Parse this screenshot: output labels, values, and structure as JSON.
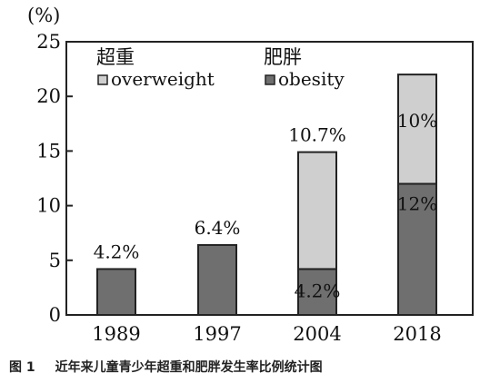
{
  "caption": {
    "figure": "图 1",
    "text": "近年来儿童青少年超重和肥胖发生率比例统计图"
  },
  "chart_data": {
    "type": "bar",
    "stacked": true,
    "y_unit_label": "(%)",
    "ylim": [
      0,
      25
    ],
    "yticks": [
      0,
      5,
      10,
      15,
      20,
      25
    ],
    "grid": false,
    "legend_position": "top-left",
    "categories": [
      "1989",
      "1997",
      "2004",
      "2018"
    ],
    "series": [
      {
        "name": "overweight",
        "label_cn": "超重",
        "color": "#cfcfcf",
        "values": [
          0,
          0,
          10.7,
          10
        ]
      },
      {
        "name": "obesity",
        "label_cn": "肥胖",
        "color": "#6f6f6f",
        "values": [
          4.2,
          6.4,
          4.2,
          12
        ]
      }
    ],
    "data_labels": [
      {
        "category": "1989",
        "series": "obesity",
        "text": "4.2%"
      },
      {
        "category": "1997",
        "series": "obesity",
        "text": "6.4%"
      },
      {
        "category": "2004",
        "series": "overweight",
        "text": "10.7%"
      },
      {
        "category": "2004",
        "series": "obesity",
        "text": "4.2%"
      },
      {
        "category": "2018",
        "series": "overweight",
        "text": "10%"
      },
      {
        "category": "2018",
        "series": "obesity",
        "text": "12%"
      }
    ]
  }
}
